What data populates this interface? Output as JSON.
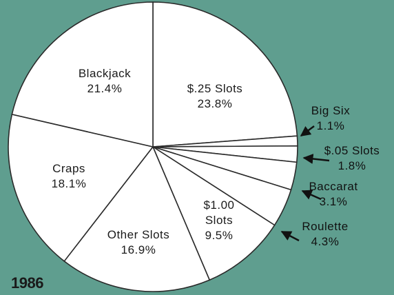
{
  "chart_data": {
    "type": "pie",
    "categories": [
      "$.25 Slots",
      "Big Six",
      "$.05 Slots",
      "Baccarat",
      "Roulette",
      "$1.00 Slots",
      "Other Slots",
      "Craps",
      "Blackjack"
    ],
    "values": [
      23.8,
      1.1,
      1.8,
      3.1,
      4.3,
      9.5,
      16.9,
      18.1,
      21.4
    ],
    "value_labels": [
      "23.8%",
      "1.1%",
      "1.8%",
      "3.1%",
      "4.3%",
      "9.5%",
      "16.9%",
      "18.1%",
      "21.4%"
    ],
    "color": "#ffffff",
    "annotation": "1986"
  }
}
